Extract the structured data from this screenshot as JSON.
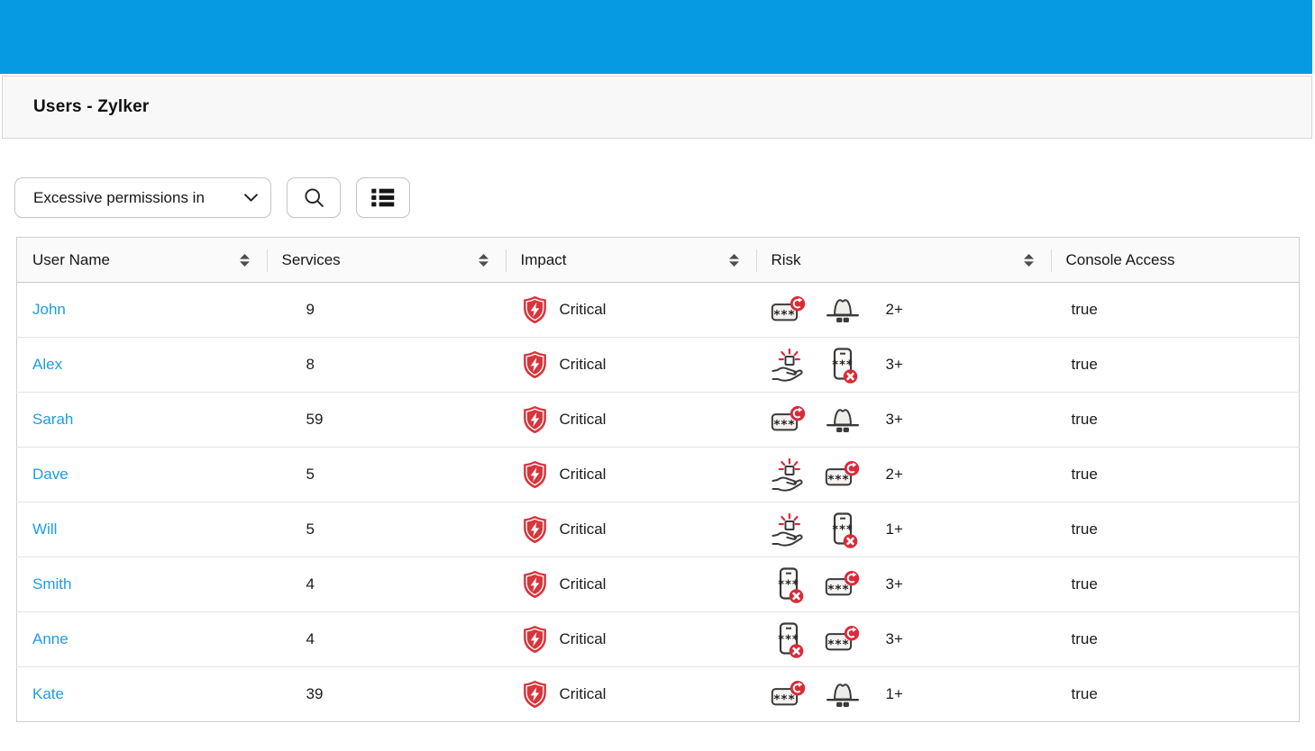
{
  "titlebar": {
    "title": "Users - Zylker"
  },
  "toolbar": {
    "filter_dropdown": {
      "value": "Excessive permissions in"
    },
    "icons": [
      "chevron-down-icon",
      "search-icon",
      "list-view-icon"
    ]
  },
  "table": {
    "columns": [
      {
        "label": "User Name",
        "sortable": true
      },
      {
        "label": "Services",
        "sortable": true
      },
      {
        "label": "Impact",
        "sortable": true
      },
      {
        "label": "Risk",
        "sortable": true
      },
      {
        "label": "Console Access",
        "sortable": false
      }
    ],
    "rows": [
      {
        "user": "John",
        "services": "9",
        "impact": "Critical",
        "risk_icons": [
          "password-rotation-icon",
          "spy-hat-icon"
        ],
        "risk_count": "2+",
        "console_access": "true"
      },
      {
        "user": "Alex",
        "services": "8",
        "impact": "Critical",
        "risk_icons": [
          "privilege-grant-icon",
          "mfa-disabled-icon"
        ],
        "risk_count": "3+",
        "console_access": "true"
      },
      {
        "user": "Sarah",
        "services": "59",
        "impact": "Critical",
        "risk_icons": [
          "password-rotation-icon",
          "spy-hat-icon"
        ],
        "risk_count": "3+",
        "console_access": "true"
      },
      {
        "user": "Dave",
        "services": "5",
        "impact": "Critical",
        "risk_icons": [
          "privilege-grant-icon",
          "password-rotation-icon"
        ],
        "risk_count": "2+",
        "console_access": "true"
      },
      {
        "user": "Will",
        "services": "5",
        "impact": "Critical",
        "risk_icons": [
          "privilege-grant-icon",
          "mfa-disabled-icon"
        ],
        "risk_count": "1+",
        "console_access": "true"
      },
      {
        "user": "Smith",
        "services": "4",
        "impact": "Critical",
        "risk_icons": [
          "mfa-disabled-icon",
          "password-rotation-icon"
        ],
        "risk_count": "3+",
        "console_access": "true"
      },
      {
        "user": "Anne",
        "services": "4",
        "impact": "Critical",
        "risk_icons": [
          "mfa-disabled-icon",
          "password-rotation-icon"
        ],
        "risk_count": "3+",
        "console_access": "true"
      },
      {
        "user": "Kate",
        "services": "39",
        "impact": "Critical",
        "risk_icons": [
          "password-rotation-icon",
          "spy-hat-icon"
        ],
        "risk_count": "1+",
        "console_access": "true"
      }
    ],
    "impact_icon": "impact-critical-icon",
    "sort_icon": "sort-icon"
  },
  "colors": {
    "topbar_blue": "#069ae3",
    "link_blue": "#1e9ce4",
    "critical_red": "#d8353c",
    "badge_red": "#d92b39",
    "icon_stroke": "#3a3a3a"
  }
}
